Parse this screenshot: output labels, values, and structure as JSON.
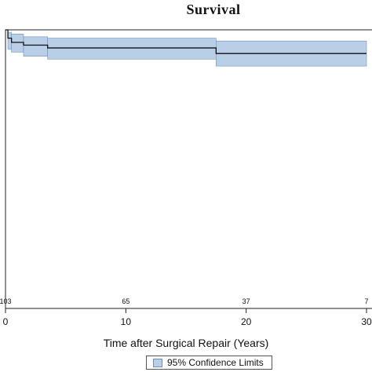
{
  "chart_data": {
    "type": "line",
    "title": "Survival",
    "xlabel": "Time after Surgical Repair (Years)",
    "ylabel": "",
    "xlim": [
      0,
      30
    ],
    "ylim": [
      0,
      1
    ],
    "x_ticks": [
      0,
      10,
      20,
      30
    ],
    "x_tick_labels": [
      "0",
      "10",
      "20",
      "30"
    ],
    "grid": false,
    "legend": {
      "placement": "bottom",
      "entries": [
        "95% Confidence Limits"
      ]
    },
    "series": [
      {
        "step": true,
        "x": [
          0,
          0.2,
          0.5,
          1.5,
          3.5,
          17.5,
          30
        ],
        "y": [
          1.0,
          0.97,
          0.955,
          0.945,
          0.935,
          0.915,
          0.915
        ],
        "lower": [
          1.0,
          0.93,
          0.92,
          0.905,
          0.895,
          0.87,
          0.87
        ],
        "upper": [
          1.0,
          0.99,
          0.985,
          0.975,
          0.97,
          0.96,
          0.96
        ]
      }
    ],
    "at_risk": {
      "x": [
        0,
        10,
        20,
        30
      ],
      "labels": [
        "103",
        "65",
        "37",
        "7"
      ]
    },
    "colors": {
      "line": "#111111",
      "band": "#b9cfe8",
      "band_edge": "#6d8fb8"
    }
  }
}
